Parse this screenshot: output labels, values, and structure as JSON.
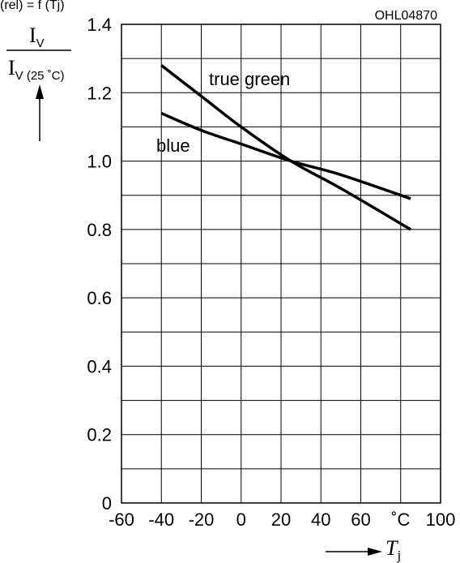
{
  "figure_code": "OHL04870",
  "top_partial_text": "(rel) = f (Tj)",
  "y_axis": {
    "label_main": "I",
    "label_main_sub": "V",
    "label_den": "I",
    "label_den_sub": "V (25 ˚C)"
  },
  "x_axis": {
    "unit": "˚C",
    "label": "T",
    "label_sub": "j"
  },
  "chart_data": {
    "type": "line",
    "title": "",
    "xlabel": "Tj",
    "ylabel": "IV / IV (25 ˚C)",
    "xlim": [
      -60,
      100
    ],
    "ylim": [
      0,
      1.4
    ],
    "x_ticks": [
      "-60",
      "-40",
      "-20",
      "0",
      "20",
      "40",
      "60",
      "˚C",
      "100"
    ],
    "y_ticks": [
      "0",
      "0.2",
      "0.4",
      "0.6",
      "0.8",
      "1.0",
      "1.2",
      "1.4"
    ],
    "grid": true,
    "series": [
      {
        "name": "true green",
        "x": [
          -40,
          -20,
          0,
          25,
          50,
          85
        ],
        "y": [
          1.28,
          1.19,
          1.1,
          1.0,
          0.92,
          0.8
        ]
      },
      {
        "name": "blue",
        "x": [
          -40,
          -20,
          0,
          25,
          50,
          85
        ],
        "y": [
          1.14,
          1.09,
          1.05,
          1.0,
          0.96,
          0.89
        ]
      }
    ]
  }
}
